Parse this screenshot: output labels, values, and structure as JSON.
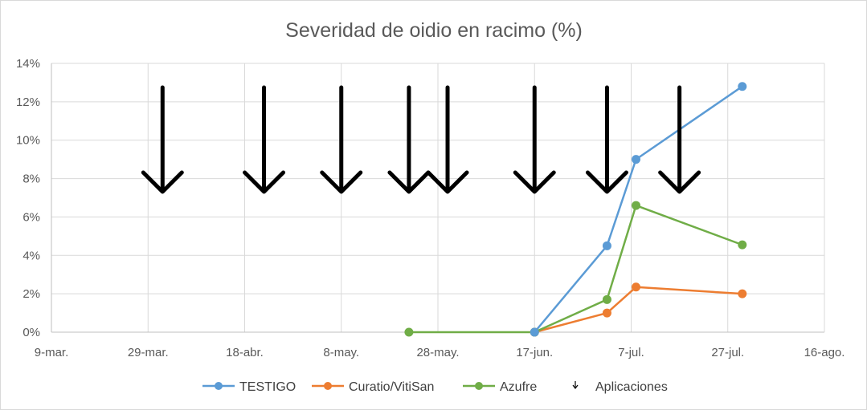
{
  "chart_data": {
    "type": "line",
    "title": "Severidad de oidio en racimo (%)",
    "xlabel": "",
    "ylabel": "",
    "x_tick_labels": [
      "9-mar.",
      "29-mar.",
      "18-abr.",
      "8-may.",
      "28-may.",
      "17-jun.",
      "7-jul.",
      "27-jul.",
      "16-ago."
    ],
    "y_tick_labels": [
      "0%",
      "2%",
      "4%",
      "6%",
      "8%",
      "10%",
      "12%",
      "14%"
    ],
    "xlim": [
      "9-mar.",
      "16-ago."
    ],
    "ylim": [
      0,
      14
    ],
    "grid": true,
    "legend_position": "bottom",
    "series": [
      {
        "name": "TESTIGO",
        "color": "#5B9BD5",
        "points": [
          {
            "x": "17-jun.",
            "y": 0
          },
          {
            "x": "2-jul.",
            "y": 4.5
          },
          {
            "x": "8-jul.",
            "y": 9.0
          },
          {
            "x": "30-jul.",
            "y": 12.8
          }
        ]
      },
      {
        "name": "Curatio/VitiSan",
        "color": "#ED7D31",
        "points": [
          {
            "x": "17-jun.",
            "y": 0
          },
          {
            "x": "2-jul.",
            "y": 1.0
          },
          {
            "x": "8-jul.",
            "y": 2.35
          },
          {
            "x": "30-jul.",
            "y": 2.0
          }
        ]
      },
      {
        "name": "Azufre",
        "color": "#70AD47",
        "points": [
          {
            "x": "22-may.",
            "y": 0
          },
          {
            "x": "17-jun.",
            "y": 0
          },
          {
            "x": "2-jul.",
            "y": 1.7
          },
          {
            "x": "8-jul.",
            "y": 6.6
          },
          {
            "x": "30-jul.",
            "y": 4.55
          }
        ]
      }
    ],
    "applications": {
      "name": "Aplicaciones",
      "color": "#000000",
      "dates": [
        "1-abr.",
        "22-abr.",
        "8-may.",
        "22-may.",
        "30-may.",
        "17-jun.",
        "2-jul.",
        "17-jul."
      ]
    }
  }
}
